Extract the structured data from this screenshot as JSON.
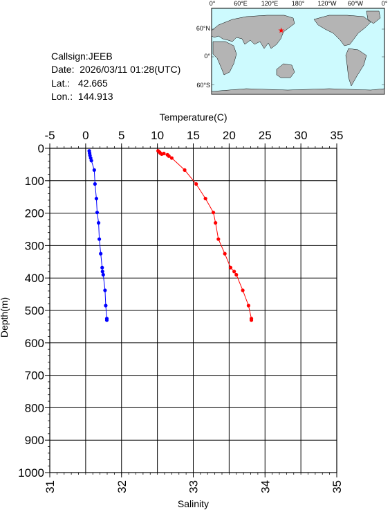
{
  "info": {
    "callsign_label": "Callsign:",
    "callsign": "JEEB",
    "date_label": "Date:",
    "date": "2026/03/11 01:28(UTC)",
    "lat_label": "Lat.:",
    "lat": "42.665",
    "lon_label": "Lon.:",
    "lon": "144.913"
  },
  "map": {
    "lon_labels": [
      "0°",
      "60°E",
      "120°E",
      "180°",
      "120°W",
      "60°W",
      "0°"
    ],
    "lat_labels": [
      "60°N",
      "0°",
      "60°S"
    ],
    "ocean_color": "#cdfafe",
    "land_color": "#b4b4b4",
    "marker_color": "#ff0000",
    "marker_icon": "star-icon",
    "marker": {
      "lat": 42.665,
      "lon": 144.913
    }
  },
  "chart_data": {
    "type": "line",
    "title": "",
    "y_axis": {
      "label": "Depth(m)",
      "range": [
        0,
        1000
      ],
      "reversed": true,
      "ticks": [
        "0",
        "100",
        "200",
        "300",
        "400",
        "500",
        "600",
        "700",
        "800",
        "900",
        "1000"
      ]
    },
    "top_axis": {
      "label": "Temperature(C)",
      "range": [
        -5,
        35
      ],
      "ticks": [
        "-5",
        "0",
        "5",
        "10",
        "15",
        "20",
        "25",
        "30",
        "35"
      ]
    },
    "bottom_axis": {
      "label": "Salinity",
      "range": [
        31,
        35
      ],
      "ticks": [
        "31",
        "32",
        "33",
        "34",
        "35"
      ]
    },
    "grid": true,
    "series": [
      {
        "axis": "top",
        "color": "#ff0000",
        "points": [
          [
            10.1,
            8
          ],
          [
            10.3,
            12
          ],
          [
            10.4,
            15
          ],
          [
            10.6,
            18
          ],
          [
            10.9,
            16
          ],
          [
            11.4,
            20
          ],
          [
            11.6,
            24
          ],
          [
            12.0,
            30
          ],
          [
            13.8,
            67
          ],
          [
            15.4,
            110
          ],
          [
            16.7,
            155
          ],
          [
            17.8,
            198
          ],
          [
            18.1,
            230
          ],
          [
            18.5,
            280
          ],
          [
            19.4,
            325
          ],
          [
            20.2,
            368
          ],
          [
            20.7,
            380
          ],
          [
            21.0,
            390
          ],
          [
            21.9,
            438
          ],
          [
            22.7,
            485
          ],
          [
            23.1,
            525
          ],
          [
            23.1,
            530
          ]
        ]
      },
      {
        "axis": "top",
        "color": "#0000ff",
        "points": [
          [
            0.5,
            8
          ],
          [
            0.55,
            15
          ],
          [
            0.6,
            22
          ],
          [
            0.7,
            30
          ],
          [
            0.8,
            38
          ],
          [
            1.2,
            67
          ],
          [
            1.3,
            110
          ],
          [
            1.5,
            155
          ],
          [
            1.6,
            198
          ],
          [
            1.8,
            230
          ],
          [
            1.9,
            280
          ],
          [
            2.1,
            325
          ],
          [
            2.3,
            368
          ],
          [
            2.35,
            380
          ],
          [
            2.45,
            390
          ],
          [
            2.7,
            438
          ],
          [
            2.8,
            485
          ],
          [
            2.95,
            525
          ],
          [
            2.95,
            530
          ]
        ]
      }
    ]
  }
}
